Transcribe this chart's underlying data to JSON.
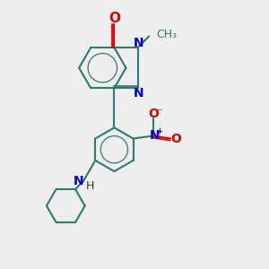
{
  "background_color": "#eeeeee",
  "bond_color": "#2d7a6e",
  "bond_width": 1.5,
  "atom_colors": {
    "O": "#dd0000",
    "N": "#0000cc"
  },
  "font_size": 9,
  "figsize": [
    3.0,
    3.0
  ],
  "dpi": 100,
  "xlim": [
    0,
    10
  ],
  "ylim": [
    0,
    10
  ]
}
